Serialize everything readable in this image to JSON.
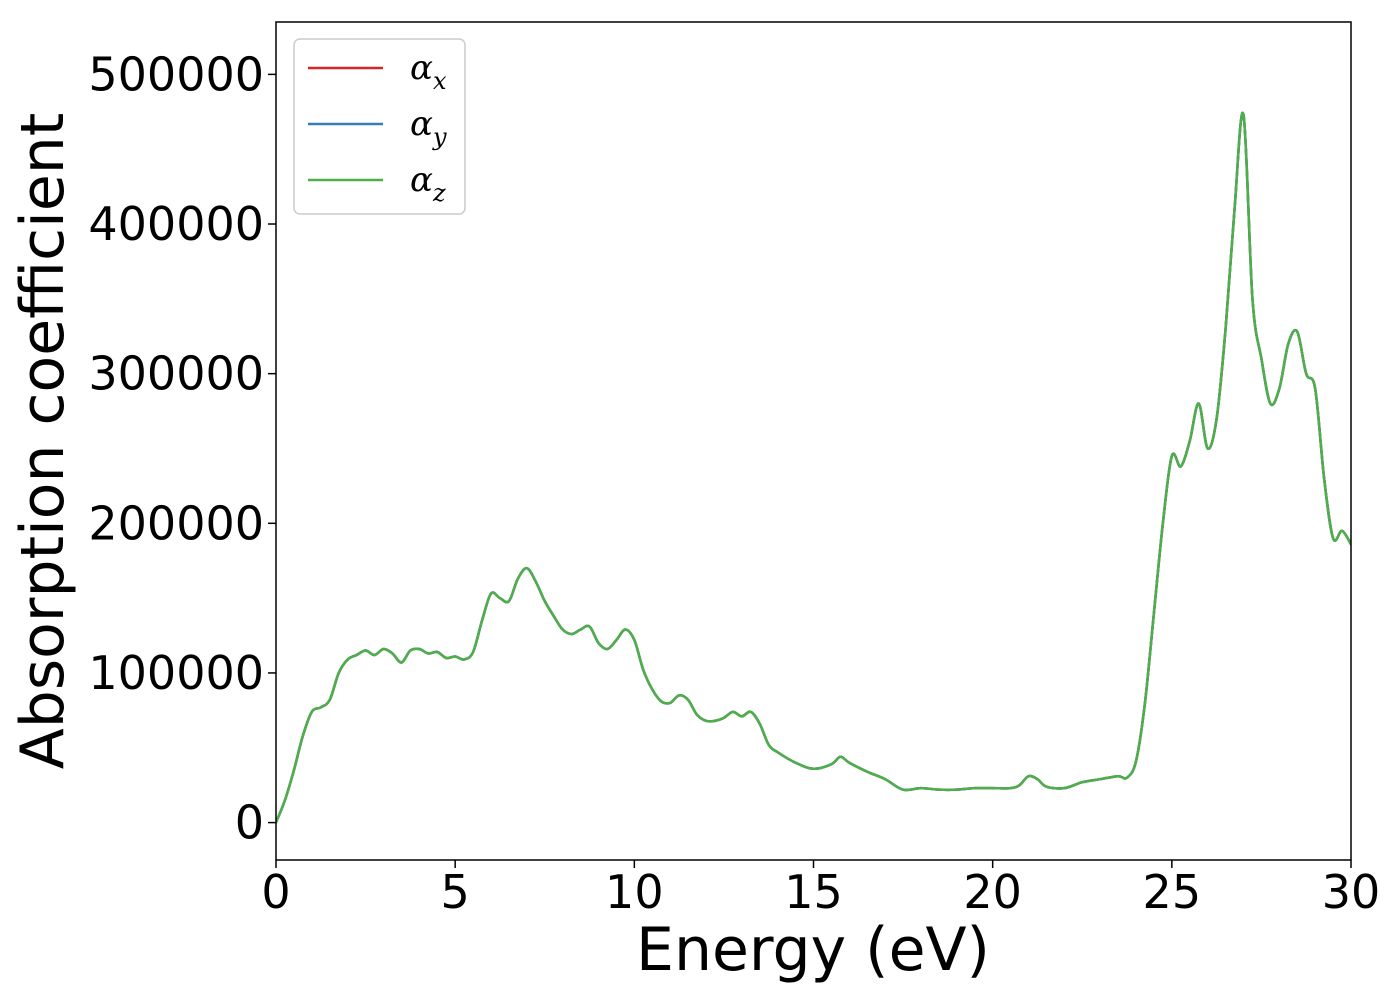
{
  "chart_data": {
    "type": "line",
    "title": "",
    "xlabel": "Energy (eV)",
    "ylabel": "Absorption coefficient",
    "xlim": [
      0,
      30
    ],
    "ylim": [
      -25000,
      535000
    ],
    "xticks": [
      0,
      5,
      10,
      15,
      20,
      25,
      30
    ],
    "yticks": [
      0,
      100000,
      200000,
      300000,
      400000,
      500000
    ],
    "xtick_labels": [
      "0",
      "5",
      "10",
      "15",
      "20",
      "25",
      "30"
    ],
    "ytick_labels": [
      "0",
      "100000",
      "200000",
      "300000",
      "400000",
      "500000"
    ],
    "grid": false,
    "legend_position": "upper-left",
    "x": [
      0,
      0.25,
      0.5,
      0.75,
      1.0,
      1.25,
      1.5,
      1.75,
      2.0,
      2.25,
      2.5,
      2.75,
      3.0,
      3.25,
      3.5,
      3.75,
      4.0,
      4.25,
      4.5,
      4.75,
      5.0,
      5.25,
      5.5,
      5.75,
      6.0,
      6.25,
      6.5,
      6.75,
      7.0,
      7.25,
      7.5,
      7.75,
      8.0,
      8.25,
      8.5,
      8.75,
      9.0,
      9.25,
      9.5,
      9.75,
      10.0,
      10.25,
      10.5,
      10.75,
      11.0,
      11.25,
      11.5,
      11.75,
      12.0,
      12.25,
      12.5,
      12.75,
      13.0,
      13.25,
      13.5,
      13.75,
      14.0,
      14.5,
      15.0,
      15.5,
      15.75,
      16.0,
      16.5,
      17.0,
      17.5,
      18.0,
      18.5,
      19.0,
      19.5,
      20.0,
      20.5,
      20.75,
      21.0,
      21.25,
      21.5,
      22.0,
      22.5,
      23.0,
      23.5,
      23.75,
      24.0,
      24.25,
      24.5,
      24.75,
      25.0,
      25.25,
      25.5,
      25.75,
      26.0,
      26.25,
      26.5,
      26.75,
      27.0,
      27.25,
      27.5,
      27.75,
      28.0,
      28.25,
      28.5,
      28.75,
      29.0,
      29.25,
      29.5,
      29.75,
      30.0
    ],
    "series": [
      {
        "name": "α_x",
        "label_base": "α",
        "label_sub": "x",
        "color": "#d62728",
        "values": [
          0,
          15000,
          35000,
          58000,
          74000,
          77000,
          82000,
          100000,
          109000,
          112000,
          115000,
          112000,
          116000,
          113000,
          107000,
          115000,
          116000,
          113000,
          114000,
          110000,
          111000,
          109000,
          114000,
          135000,
          153000,
          150000,
          148000,
          163000,
          170000,
          161000,
          148000,
          138000,
          129000,
          126000,
          129000,
          131000,
          120000,
          116000,
          122000,
          129000,
          122000,
          102000,
          89000,
          81000,
          80000,
          85000,
          82000,
          72000,
          68000,
          68000,
          70000,
          74000,
          71000,
          74000,
          66000,
          52000,
          47000,
          40000,
          36000,
          39000,
          44000,
          40000,
          34000,
          29000,
          22000,
          23000,
          22000,
          22000,
          23000,
          23000,
          23000,
          25000,
          31000,
          29000,
          24000,
          23000,
          27000,
          29000,
          31000,
          30000,
          41000,
          80000,
          140000,
          200000,
          245000,
          238000,
          255000,
          280000,
          250000,
          270000,
          330000,
          410000,
          473000,
          350000,
          310000,
          280000,
          290000,
          320000,
          328000,
          300000,
          290000,
          230000,
          190000,
          195000,
          186000
        ]
      },
      {
        "name": "α_y",
        "label_base": "α",
        "label_sub": "y",
        "color": "#377eb8",
        "values": [
          0,
          15000,
          35000,
          58000,
          74000,
          77000,
          82000,
          100000,
          109000,
          112000,
          115000,
          112000,
          116000,
          113000,
          107000,
          115000,
          116000,
          113000,
          114000,
          110000,
          111000,
          109000,
          114000,
          135000,
          153000,
          150000,
          148000,
          163000,
          170000,
          161000,
          148000,
          138000,
          129000,
          126000,
          129000,
          131000,
          120000,
          116000,
          122000,
          129000,
          122000,
          102000,
          89000,
          81000,
          80000,
          85000,
          82000,
          72000,
          68000,
          68000,
          70000,
          74000,
          71000,
          74000,
          66000,
          52000,
          47000,
          40000,
          36000,
          39000,
          44000,
          40000,
          34000,
          29000,
          22000,
          23000,
          22000,
          22000,
          23000,
          23000,
          23000,
          25000,
          31000,
          29000,
          24000,
          23000,
          27000,
          29000,
          31000,
          30000,
          41000,
          80000,
          140000,
          200000,
          245000,
          238000,
          255000,
          280000,
          250000,
          270000,
          330000,
          410000,
          473000,
          350000,
          310000,
          280000,
          290000,
          320000,
          328000,
          300000,
          290000,
          230000,
          190000,
          195000,
          186000
        ]
      },
      {
        "name": "α_z",
        "label_base": "α",
        "label_sub": "z",
        "color": "#4daf4a",
        "values": [
          0,
          15000,
          35000,
          58000,
          74000,
          77000,
          82000,
          100000,
          109000,
          112000,
          115000,
          112000,
          116000,
          113000,
          107000,
          115000,
          116000,
          113000,
          114000,
          110000,
          111000,
          109000,
          114000,
          135000,
          153000,
          150000,
          148000,
          163000,
          170000,
          161000,
          148000,
          138000,
          129000,
          126000,
          129000,
          131000,
          120000,
          116000,
          122000,
          129000,
          122000,
          102000,
          89000,
          81000,
          80000,
          85000,
          82000,
          72000,
          68000,
          68000,
          70000,
          74000,
          71000,
          74000,
          66000,
          52000,
          47000,
          40000,
          36000,
          39000,
          44000,
          40000,
          34000,
          29000,
          22000,
          23000,
          22000,
          22000,
          23000,
          23000,
          23000,
          25000,
          31000,
          29000,
          24000,
          23000,
          27000,
          29000,
          31000,
          30000,
          41000,
          80000,
          140000,
          200000,
          245000,
          238000,
          255000,
          280000,
          250000,
          270000,
          330000,
          410000,
          473000,
          350000,
          310000,
          280000,
          290000,
          320000,
          328000,
          300000,
          290000,
          230000,
          190000,
          195000,
          186000
        ]
      }
    ]
  }
}
